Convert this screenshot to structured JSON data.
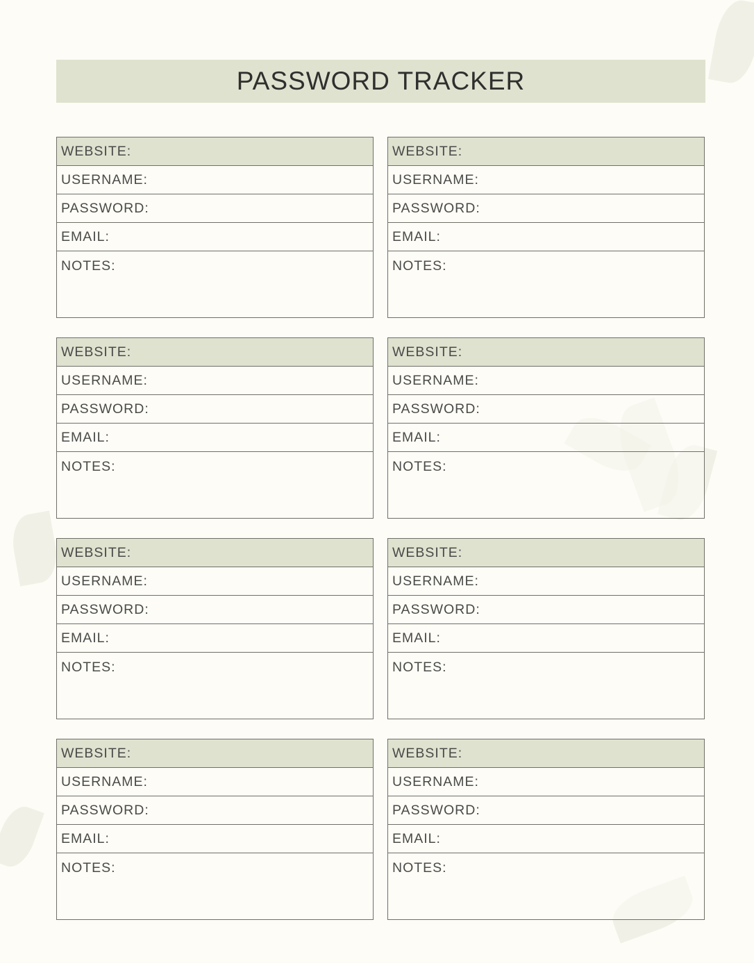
{
  "title": "PASSWORD TRACKER",
  "colors": {
    "background": "#fdfcf6",
    "header_fill": "#dfe2cf",
    "border": "#6f6f68",
    "text": "#4a4a48"
  },
  "cards": [
    {
      "website": "WEBSITE:",
      "username": "USERNAME:",
      "password": "PASSWORD:",
      "email": "EMAIL:",
      "notes": "NOTES:"
    },
    {
      "website": "WEBSITE:",
      "username": "USERNAME:",
      "password": "PASSWORD:",
      "email": "EMAIL:",
      "notes": "NOTES:"
    },
    {
      "website": "WEBSITE:",
      "username": "USERNAME:",
      "password": "PASSWORD:",
      "email": "EMAIL:",
      "notes": "NOTES:"
    },
    {
      "website": "WEBSITE:",
      "username": "USERNAME:",
      "password": "PASSWORD:",
      "email": "EMAIL:",
      "notes": "NOTES:"
    },
    {
      "website": "WEBSITE:",
      "username": "USERNAME:",
      "password": "PASSWORD:",
      "email": "EMAIL:",
      "notes": "NOTES:"
    },
    {
      "website": "WEBSITE:",
      "username": "USERNAME:",
      "password": "PASSWORD:",
      "email": "EMAIL:",
      "notes": "NOTES:"
    },
    {
      "website": "WEBSITE:",
      "username": "USERNAME:",
      "password": "PASSWORD:",
      "email": "EMAIL:",
      "notes": "NOTES:"
    },
    {
      "website": "WEBSITE:",
      "username": "USERNAME:",
      "password": "PASSWORD:",
      "email": "EMAIL:",
      "notes": "NOTES:"
    }
  ]
}
